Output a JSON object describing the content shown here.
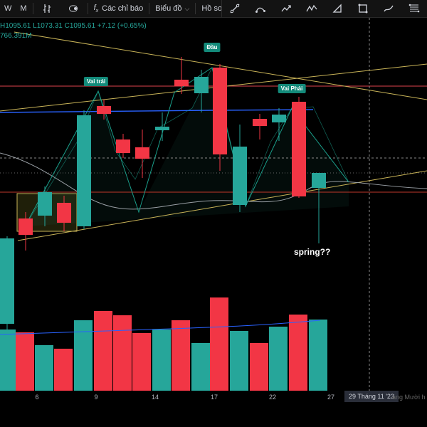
{
  "toolbar": {
    "w_label": "W",
    "m_label": "M",
    "indicators_label": "Các chỉ báo",
    "chart_label": "Biểu đồ",
    "profile_label": "Hồ sơ"
  },
  "legend": {
    "ohlc_text": "H1095.61  L1073.31  C1095.61  +7.12 (+0.65%)",
    "volume_text": "766.391M"
  },
  "annotations": {
    "left_shoulder": "Vai trái",
    "head": "Đầu",
    "right_shoulder": "Vai Phải",
    "spring": "spring??"
  },
  "time_axis": {
    "ticks": [
      "6",
      "9",
      "14",
      "17",
      "22",
      "27"
    ],
    "crosshair_date": "29 Tháng 11 '23",
    "partial_label": "áng Mười h"
  },
  "colors": {
    "up": "#26a69a",
    "down": "#f23645",
    "ma": "#2962ff",
    "trend": "#c9b458",
    "resistance": "#e0444e"
  },
  "chart_data": {
    "type": "candlestick",
    "candles": [
      {
        "dir": "up"
      },
      {
        "dir": "down"
      },
      {
        "dir": "up"
      },
      {
        "dir": "down"
      },
      {
        "dir": "up"
      },
      {
        "dir": "down"
      },
      {
        "dir": "down"
      },
      {
        "dir": "down"
      },
      {
        "dir": "up"
      },
      {
        "dir": "down"
      },
      {
        "dir": "up"
      },
      {
        "dir": "down"
      },
      {
        "dir": "up"
      },
      {
        "dir": "down"
      },
      {
        "dir": "up"
      },
      {
        "dir": "down"
      },
      {
        "dir": "up"
      }
    ]
  }
}
